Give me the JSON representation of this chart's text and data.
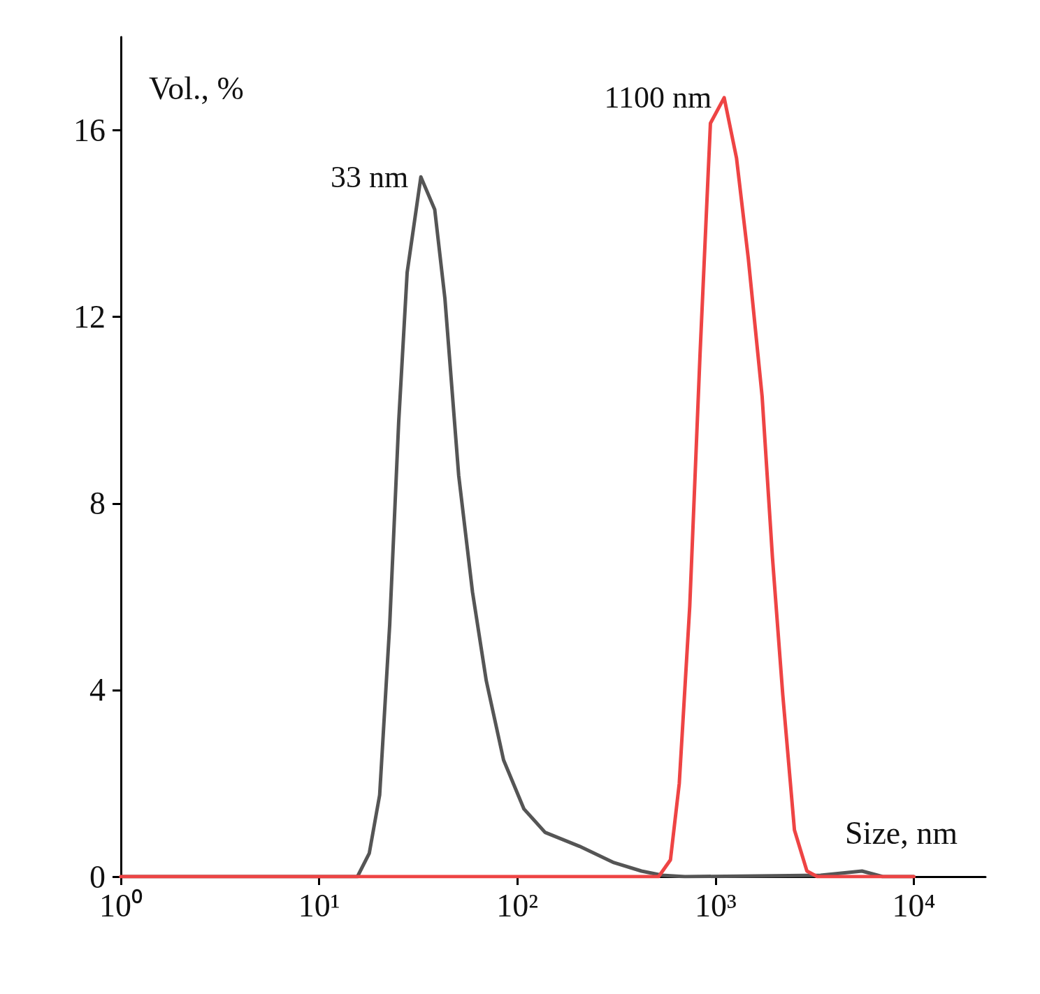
{
  "chart_data": {
    "type": "line",
    "xlabel": "Size, nm",
    "ylabel": "Vol., %",
    "log": "x",
    "xlim": [
      1,
      23000
    ],
    "xticks": [
      {
        "value": 1,
        "label": "10⁰"
      },
      {
        "value": 10,
        "label": "10¹"
      },
      {
        "value": 100,
        "label": "10²"
      },
      {
        "value": 1000,
        "label": "10³"
      },
      {
        "value": 10000,
        "label": "10⁴"
      }
    ],
    "ylim": [
      0,
      18
    ],
    "yticks": [
      0,
      4,
      8,
      12,
      16
    ],
    "grid": false,
    "marker": "none",
    "line_style": "solid",
    "series": [
      {
        "color": "#555555",
        "x": [
          1,
          15.6,
          17.9,
          20.2,
          22.7,
          25.2,
          27.8,
          32.6,
          38.3,
          43.1,
          50.6,
          59.4,
          69.7,
          85.2,
          108,
          138,
          206,
          307,
          423,
          537,
          700,
          3390,
          5480,
          6970,
          10000
        ],
        "values": [
          0,
          0,
          0.5,
          1.75,
          5.4,
          9.75,
          12.95,
          15.0,
          14.3,
          12.4,
          8.6,
          6.1,
          4.2,
          2.5,
          1.45,
          0.95,
          0.65,
          0.3,
          0.12,
          0.03,
          0,
          0.03,
          0.12,
          0,
          0
        ]
      },
      {
        "color": "#ee4444",
        "x": [
          1,
          516,
          592,
          656,
          741,
          835,
          942,
          1105,
          1276,
          1463,
          1717,
          1936,
          2183,
          2500,
          2890,
          3260,
          10000
        ],
        "values": [
          0,
          0,
          0.36,
          2.0,
          5.8,
          11.2,
          16.15,
          16.7,
          15.4,
          13.25,
          10.3,
          6.85,
          3.9,
          1.0,
          0.12,
          0,
          0
        ]
      }
    ],
    "annotations": [
      {
        "text": "33 nm",
        "x": 32.6,
        "y": 15.0
      },
      {
        "text": "1100 nm",
        "x": 1105,
        "y": 16.7
      }
    ]
  }
}
